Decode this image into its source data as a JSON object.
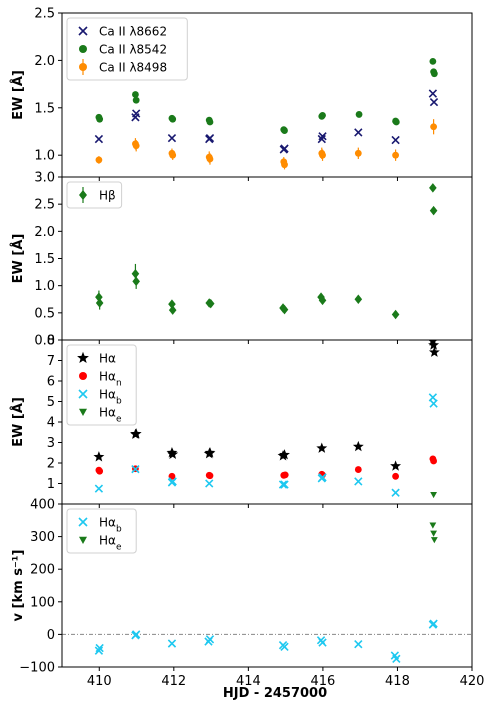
{
  "chart_data": {
    "type": "scatter",
    "x_axis": {
      "label": "HJD - 2457000",
      "xlim": [
        409,
        420
      ],
      "ticks": [
        410,
        412,
        414,
        416,
        418,
        420
      ],
      "tick_labels": [
        "410",
        "412",
        "414",
        "416",
        "418",
        "420"
      ]
    },
    "panels": [
      {
        "ylabel": "EW [Å]",
        "ylim": [
          0.77,
          2.5
        ],
        "yticks": [
          1.0,
          1.5,
          2.0,
          2.5
        ],
        "ytick_labels": [
          "1.0",
          "1.5",
          "2.0",
          "2.5"
        ],
        "legend_position": "top-left",
        "series": [
          {
            "name": "Ca II λ8662",
            "color": "#191970",
            "marker": "x",
            "x": [
              409.99,
              410.97,
              410.99,
              411.95,
              412.95,
              412.97,
              414.95,
              414.97,
              415.97,
              415.99,
              416.95,
              417.95,
              418.95,
              418.98
            ],
            "y": [
              1.17,
              1.4,
              1.44,
              1.18,
              1.17,
              1.18,
              1.06,
              1.07,
              1.17,
              1.2,
              1.24,
              1.16,
              1.65,
              1.56
            ],
            "yerr": [
              0.0,
              0.0,
              0.0,
              0.0,
              0.0,
              0.0,
              0.0,
              0.0,
              0.0,
              0.0,
              0.0,
              0.0,
              0.0,
              0.0
            ]
          },
          {
            "name": "Ca II λ8542",
            "color": "#1a7a1a",
            "marker": "o",
            "x": [
              409.99,
              410.01,
              410.97,
              410.99,
              411.95,
              411.97,
              412.95,
              412.97,
              414.95,
              414.97,
              415.97,
              415.99,
              416.97,
              417.95,
              417.97,
              418.95,
              418.97,
              418.99
            ],
            "y": [
              1.4,
              1.38,
              1.64,
              1.58,
              1.39,
              1.38,
              1.37,
              1.35,
              1.27,
              1.26,
              1.41,
              1.42,
              1.43,
              1.36,
              1.35,
              1.99,
              1.88,
              1.86
            ],
            "yerr": [
              0.0,
              0.0,
              0.0,
              0.0,
              0.0,
              0.0,
              0.0,
              0.0,
              0.0,
              0.0,
              0.0,
              0.0,
              0.0,
              0.0,
              0.0,
              0.0,
              0.0,
              0.0
            ]
          },
          {
            "name": "Ca II λ8498",
            "color": "#ff8c00",
            "marker": "o",
            "x": [
              409.99,
              410.97,
              410.99,
              411.95,
              411.97,
              412.95,
              412.97,
              414.95,
              414.97,
              415.97,
              415.99,
              416.95,
              417.95,
              418.97
            ],
            "y": [
              0.95,
              1.12,
              1.1,
              1.02,
              1.0,
              0.98,
              0.96,
              0.93,
              0.9,
              1.02,
              1.0,
              1.02,
              1.0,
              1.3
            ],
            "yerr": [
              0.04,
              0.06,
              0.06,
              0.05,
              0.05,
              0.06,
              0.06,
              0.05,
              0.05,
              0.06,
              0.06,
              0.06,
              0.06,
              0.08
            ]
          }
        ]
      },
      {
        "ylabel": "EW [Å]",
        "ylim": [
          0.0,
          3.0
        ],
        "yticks": [
          0.0,
          0.5,
          1.0,
          1.5,
          2.0,
          2.5,
          3.0
        ],
        "ytick_labels": [
          "0.0",
          "0.5",
          "1.0",
          "1.5",
          "2.0",
          "2.5",
          "3.0"
        ],
        "legend_position": "top-left",
        "series": [
          {
            "name": "Hβ",
            "color": "#1a7a1a",
            "marker": "D",
            "x": [
              409.99,
              410.01,
              410.97,
              410.99,
              411.95,
              411.97,
              412.95,
              412.99,
              414.93,
              414.97,
              415.95,
              415.99,
              416.95,
              417.95,
              418.95,
              418.97
            ],
            "y": [
              0.79,
              0.68,
              1.22,
              1.08,
              0.66,
              0.55,
              0.68,
              0.67,
              0.59,
              0.56,
              0.79,
              0.73,
              0.75,
              0.47,
              2.8,
              2.38
            ],
            "yerr": [
              0.12,
              0.12,
              0.18,
              0.14,
              0.0,
              0.0,
              0.0,
              0.0,
              0.0,
              0.0,
              0.0,
              0.0,
              0.0,
              0.0,
              0.0,
              0.0
            ]
          }
        ]
      },
      {
        "ylabel": "EW [Å]",
        "ylim": [
          0.0,
          8.0
        ],
        "yticks": [
          0,
          1,
          2,
          3,
          4,
          5,
          6,
          7,
          8
        ],
        "ytick_labels": [
          "",
          "1",
          "2",
          "3",
          "4",
          "5",
          "6",
          "7",
          "8"
        ],
        "legend_position": "top-left",
        "series": [
          {
            "name": "Hα",
            "color": "#000000",
            "marker": "star",
            "x": [
              409.99,
              410.97,
              410.99,
              411.95,
              411.97,
              412.95,
              412.97,
              414.93,
              414.97,
              415.97,
              416.95,
              417.95,
              418.95,
              418.97,
              418.99
            ],
            "y": [
              2.3,
              3.4,
              3.42,
              2.5,
              2.42,
              2.45,
              2.5,
              2.35,
              2.4,
              2.72,
              2.8,
              1.85,
              7.95,
              7.75,
              7.4
            ],
            "yerr": [
              0.0,
              0.0,
              0.0,
              0.0,
              0.0,
              0.0,
              0.0,
              0.0,
              0.0,
              0.0,
              0.0,
              0.0,
              0.0,
              0.0,
              0.0
            ]
          },
          {
            "name": "Hα_n",
            "color": "#ff0000",
            "marker": "o",
            "x": [
              409.99,
              410.01,
              410.97,
              411.95,
              412.95,
              412.97,
              414.95,
              414.99,
              415.97,
              415.99,
              416.95,
              417.95,
              418.95,
              418.97
            ],
            "y": [
              1.65,
              1.6,
              1.72,
              1.35,
              1.4,
              1.38,
              1.4,
              1.42,
              1.45,
              1.42,
              1.68,
              1.35,
              2.2,
              2.1
            ],
            "yerr": [
              0.0,
              0.0,
              0.0,
              0.0,
              0.0,
              0.0,
              0.0,
              0.0,
              0.0,
              0.0,
              0.0,
              0.0,
              0.0,
              0.0
            ]
          },
          {
            "name": "Hα_b",
            "color": "#1ec8f0",
            "marker": "x",
            "x": [
              409.99,
              410.97,
              411.95,
              411.97,
              412.95,
              414.93,
              414.97,
              415.97,
              415.99,
              416.95,
              417.95,
              418.95,
              418.97
            ],
            "y": [
              0.75,
              1.7,
              1.05,
              1.1,
              1.0,
              0.95,
              0.95,
              1.25,
              1.3,
              1.1,
              0.55,
              5.2,
              4.9
            ],
            "yerr": [
              0.0,
              0.0,
              0.0,
              0.0,
              0.0,
              0.0,
              0.0,
              0.0,
              0.0,
              0.0,
              0.0,
              0.0,
              0.0
            ]
          },
          {
            "name": "Hα_e",
            "color": "#1a7a1a",
            "marker": "v",
            "x": [
              418.97
            ],
            "y": [
              0.45
            ],
            "yerr": [
              0.0
            ]
          }
        ]
      },
      {
        "ylabel": "v [km s⁻¹]",
        "ylim": [
          -100,
          400
        ],
        "yticks": [
          -100,
          0,
          100,
          200,
          300,
          400
        ],
        "ytick_labels": [
          "−100",
          "0",
          "100",
          "200",
          "300",
          "400"
        ],
        "legend_position": "top-left",
        "hline": 0,
        "series": [
          {
            "name": "Hα_b",
            "color": "#1ec8f0",
            "marker": "x",
            "x": [
              409.99,
              410.01,
              410.97,
              410.99,
              411.95,
              412.93,
              412.97,
              414.93,
              414.97,
              415.95,
              415.99,
              416.95,
              417.93,
              417.97,
              418.95,
              418.97
            ],
            "y": [
              -50,
              -42,
              -3,
              0,
              -28,
              -22,
              -15,
              -33,
              -38,
              -18,
              -25,
              -30,
              -65,
              -75,
              30,
              33
            ],
            "yerr": [
              0,
              0,
              0,
              0,
              0,
              0,
              0,
              0,
              0,
              0,
              0,
              0,
              0,
              0,
              0,
              0
            ]
          },
          {
            "name": "Hα_e",
            "color": "#1a7a1a",
            "marker": "v",
            "x": [
              418.95,
              418.97,
              418.99
            ],
            "y": [
              335,
              310,
              290
            ],
            "yerr": [
              0,
              0,
              0
            ]
          }
        ]
      }
    ]
  }
}
